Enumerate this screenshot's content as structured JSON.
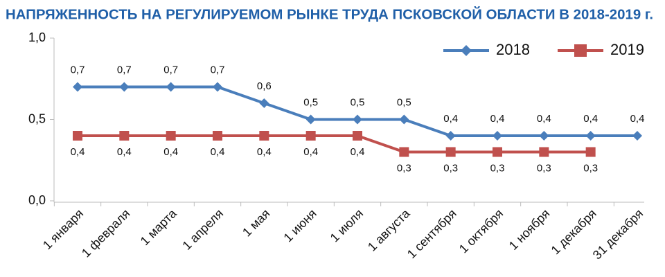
{
  "chart_data": {
    "type": "line",
    "title": "НАПРЯЖЕННОСТЬ НА РЕГУЛИРУЕМОМ РЫНКЕ ТРУДА ПСКОВСКОЙ ОБЛАСТИ В 2018-2019 г.",
    "categories": [
      "1 января",
      "1 февраля",
      "1 марта",
      "1 апреля",
      "1 мая",
      "1 июня",
      "1 июля",
      "1 августа",
      "1 сентября",
      "1 октября",
      "1 ноября",
      "1 декабря",
      "31 декабря"
    ],
    "series": [
      {
        "name": "2018",
        "color": "#4a7ebb",
        "marker": "diamond",
        "values": [
          0.7,
          0.7,
          0.7,
          0.7,
          0.6,
          0.5,
          0.5,
          0.5,
          0.4,
          0.4,
          0.4,
          0.4,
          0.4
        ],
        "value_labels": [
          "0,7",
          "0,7",
          "0,7",
          "0,7",
          "0,6",
          "0,5",
          "0,5",
          "0,5",
          "0,4",
          "0,4",
          "0,4",
          "0,4",
          "0,4"
        ]
      },
      {
        "name": "2019",
        "color": "#c0504d",
        "marker": "square",
        "values": [
          0.4,
          0.4,
          0.4,
          0.4,
          0.4,
          0.4,
          0.4,
          0.3,
          0.3,
          0.3,
          0.3,
          0.3,
          null
        ],
        "value_labels": [
          "0,4",
          "0,4",
          "0,4",
          "0,4",
          "0,4",
          "0,4",
          "0,4",
          "0,3",
          "0,3",
          "0,3",
          "0,3",
          "0,3",
          null
        ]
      }
    ],
    "ylim": [
      0,
      1
    ],
    "yticks": [
      {
        "value": 0,
        "label": "0,0"
      },
      {
        "value": 0.5,
        "label": "0,5"
      },
      {
        "value": 1,
        "label": "1,0"
      }
    ],
    "grid": false,
    "legend": "top-right"
  }
}
